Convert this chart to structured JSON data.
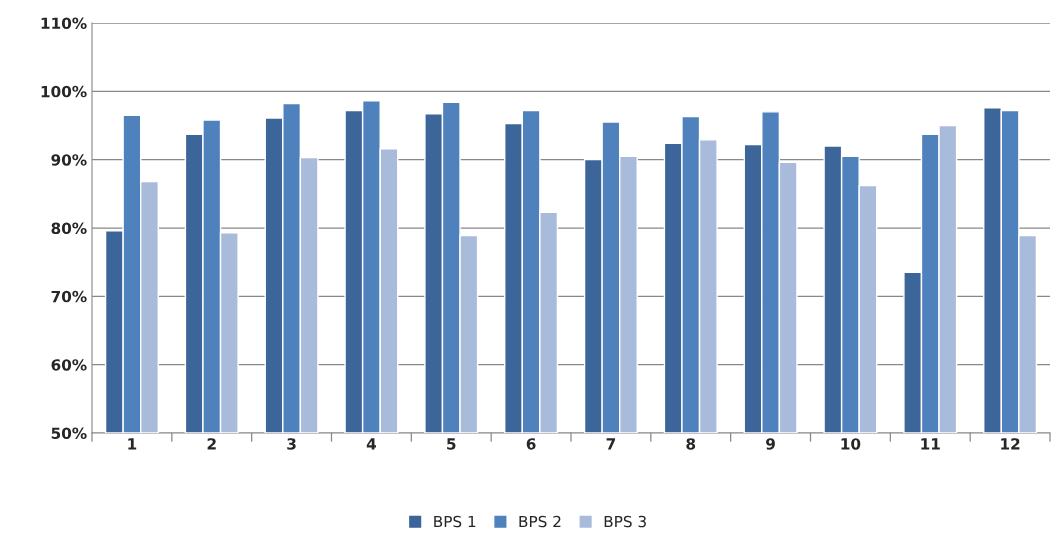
{
  "chart_data": {
    "type": "bar",
    "categories": [
      "1",
      "2",
      "3",
      "4",
      "5",
      "6",
      "7",
      "8",
      "9",
      "10",
      "11",
      "12"
    ],
    "series": [
      {
        "name": "BPS 1",
        "color": "#3c6699",
        "values": [
          79.6,
          93.7,
          96.1,
          97.2,
          96.7,
          95.3,
          90.0,
          92.4,
          92.2,
          92.0,
          73.5,
          97.6
        ]
      },
      {
        "name": "BPS 2",
        "color": "#4f81bd",
        "values": [
          96.5,
          95.8,
          98.2,
          98.6,
          98.4,
          97.2,
          95.5,
          96.3,
          97.0,
          90.5,
          93.7,
          97.2
        ]
      },
      {
        "name": "BPS 3",
        "color": "#a9bbdb",
        "values": [
          86.8,
          79.3,
          90.3,
          91.6,
          78.9,
          82.3,
          90.5,
          92.9,
          89.6,
          86.2,
          95.0,
          78.9
        ]
      }
    ],
    "ylim": [
      50,
      110
    ],
    "yticks": [
      {
        "value": 50,
        "label": "50%"
      },
      {
        "value": 60,
        "label": "60%"
      },
      {
        "value": 70,
        "label": "70%"
      },
      {
        "value": 80,
        "label": "80%"
      },
      {
        "value": 90,
        "label": "90%"
      },
      {
        "value": 100,
        "label": "100%"
      },
      {
        "value": 110,
        "label": "110%"
      }
    ],
    "grid": "y",
    "legend": "bottom"
  }
}
